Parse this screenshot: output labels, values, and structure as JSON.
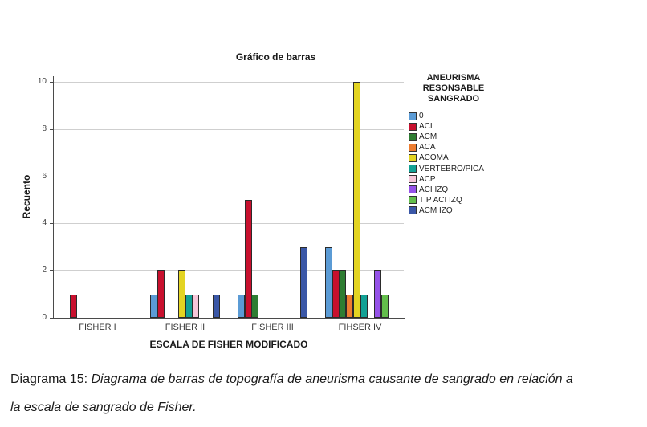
{
  "figure": {
    "title": "Gráfico de barras",
    "x_axis_title": "ESCALA DE FISHER MODIFICADO",
    "y_axis_title": "Recuento"
  },
  "legend": {
    "title": "ANEURISMA\nRESONSABLE\nSANGRADO"
  },
  "chart_data": {
    "type": "bar",
    "title": "Gráfico de barras",
    "xlabel": "ESCALA DE FISHER MODIFICADO",
    "ylabel": "Recuento",
    "legend_title": "ANEURISMA RESONSABLE SANGRADO",
    "legend_position": "right",
    "grid": "horizontal",
    "ylim": [
      0,
      10
    ],
    "yticks": [
      0,
      2,
      4,
      6,
      8,
      10
    ],
    "categories": [
      "FISHER I",
      "FISHER II",
      "FISHER III",
      "FIHSER IV"
    ],
    "series": [
      {
        "name": "0",
        "color": "#5B9BD5",
        "values": [
          0,
          1,
          1,
          3
        ]
      },
      {
        "name": "ACI",
        "color": "#C8102E",
        "values": [
          1,
          2,
          5,
          2
        ]
      },
      {
        "name": "ACM",
        "color": "#2E7D32",
        "values": [
          0,
          0,
          1,
          2
        ]
      },
      {
        "name": "ACA",
        "color": "#ED7D31",
        "values": [
          0,
          0,
          0,
          1
        ]
      },
      {
        "name": "ACOMA",
        "color": "#E3D422",
        "values": [
          0,
          2,
          0,
          10
        ]
      },
      {
        "name": "VERTEBRO/PICA",
        "color": "#12A195",
        "values": [
          0,
          1,
          0,
          1
        ]
      },
      {
        "name": "ACP",
        "color": "#F7C6D9",
        "values": [
          0,
          1,
          0,
          0
        ]
      },
      {
        "name": "ACI IZQ",
        "color": "#9552E8",
        "values": [
          0,
          0,
          0,
          2
        ]
      },
      {
        "name": "TIP ACI IZQ",
        "color": "#63BE4B",
        "values": [
          0,
          0,
          0,
          1
        ]
      },
      {
        "name": "ACM IZQ",
        "color": "#3A57A7",
        "values": [
          0,
          1,
          3,
          0
        ]
      }
    ]
  },
  "caption": {
    "label": "Diagrama 15:",
    "text": "Diagrama de barras de topografía de aneurisma causante de sangrado en relación a\nla escala de sangrado de Fisher."
  }
}
